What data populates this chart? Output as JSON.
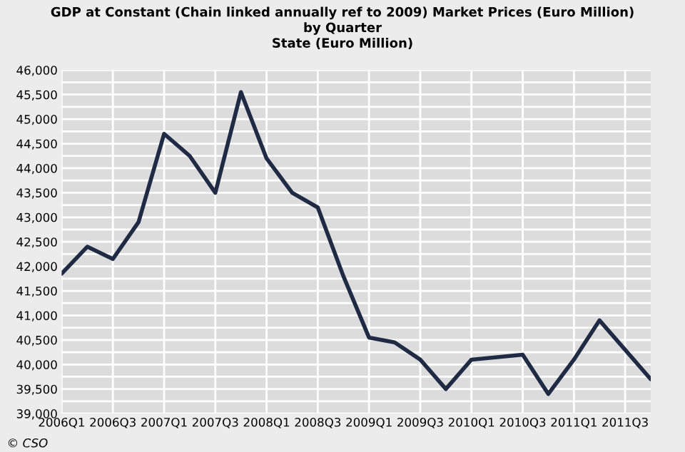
{
  "chart_data": {
    "type": "line",
    "title": "GDP at Constant (Chain linked annually ref to 2009) Market Prices (Euro Million)\nby Quarter\nState (Euro Million)",
    "categories": [
      "2006Q1",
      null,
      "2006Q3",
      null,
      "2007Q1",
      null,
      "2007Q3",
      null,
      "2008Q1",
      null,
      "2008Q3",
      null,
      "2009Q1",
      null,
      "2009Q3",
      null,
      "2010Q1",
      null,
      "2010Q3",
      null,
      "2011Q1",
      null,
      "2011Q3",
      null
    ],
    "series": [
      {
        "color": "#1f2a44",
        "values": [
          41850,
          42400,
          42150,
          42900,
          44700,
          44250,
          43500,
          45550,
          44200,
          43500,
          43200,
          41800,
          40550,
          40450,
          40100,
          39500,
          40100,
          40150,
          40200,
          39400,
          40100,
          40900,
          40300,
          39700
        ]
      }
    ],
    "ylim": [
      39000,
      46000
    ],
    "yticks": [
      {
        "value": 39000,
        "label": "39,000"
      },
      {
        "value": 39250,
        "label": null
      },
      {
        "value": 39500,
        "label": "39,500"
      },
      {
        "value": 39750,
        "label": null
      },
      {
        "value": 40000,
        "label": "40,000"
      },
      {
        "value": 40250,
        "label": null
      },
      {
        "value": 40500,
        "label": "40,500"
      },
      {
        "value": 40750,
        "label": null
      },
      {
        "value": 41000,
        "label": "41,000"
      },
      {
        "value": 41250,
        "label": null
      },
      {
        "value": 41500,
        "label": "41,500"
      },
      {
        "value": 41750,
        "label": null
      },
      {
        "value": 42000,
        "label": "42,000"
      },
      {
        "value": 42250,
        "label": null
      },
      {
        "value": 42500,
        "label": "42,500"
      },
      {
        "value": 42750,
        "label": null
      },
      {
        "value": 43000,
        "label": "43,000"
      },
      {
        "value": 43250,
        "label": null
      },
      {
        "value": 43500,
        "label": "43,500"
      },
      {
        "value": 43750,
        "label": null
      },
      {
        "value": 44000,
        "label": "44,000"
      },
      {
        "value": 44250,
        "label": null
      },
      {
        "value": 44500,
        "label": "44,500"
      },
      {
        "value": 44750,
        "label": null
      },
      {
        "value": 45000,
        "label": "45,000"
      },
      {
        "value": 45250,
        "label": null
      },
      {
        "value": 45500,
        "label": "45,500"
      },
      {
        "value": 45750,
        "label": null
      },
      {
        "value": 46000,
        "label": "46,000"
      }
    ],
    "grid": true,
    "annotations": [
      "© CSO"
    ]
  }
}
